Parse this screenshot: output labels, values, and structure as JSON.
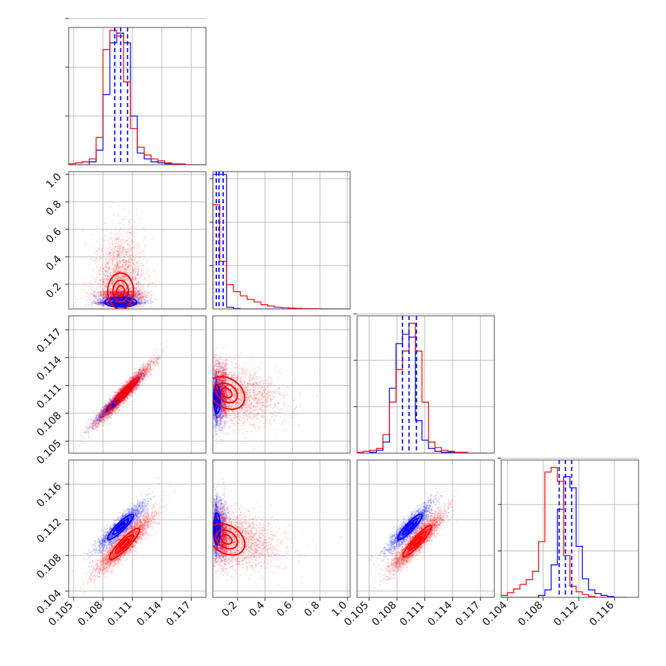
{
  "chart_data": {
    "type": "corner",
    "grid": true,
    "series": [
      {
        "color": "#0000ff"
      },
      {
        "color": "#ff0000"
      }
    ],
    "diag_ticks": 3,
    "params": [
      {
        "range": [
          0.1045,
          0.1185
        ],
        "ticks": [
          "0.105",
          "0.108",
          "0.111",
          "0.114",
          "0.117"
        ],
        "tickvals": [
          0.105,
          0.108,
          0.111,
          0.114,
          0.117
        ],
        "hist": {
          "edges": [
            0.1045,
            0.1052,
            0.1059,
            0.1066,
            0.1073,
            0.108,
            0.1087,
            0.1094,
            0.1101,
            0.1108,
            0.1115,
            0.1122,
            0.1129,
            0.1136,
            0.1143,
            0.115,
            0.1157,
            0.1164,
            0.1171,
            0.1178,
            0.1185
          ],
          "blue": [
            0.0,
            0.0,
            0.0,
            0.03,
            0.15,
            0.72,
            1.25,
            1.35,
            1.25,
            0.5,
            0.12,
            0.06,
            0.03,
            0.02,
            0.01,
            0.01,
            0.0,
            0.0,
            0.0,
            0.0
          ],
          "red": [
            0.01,
            0.02,
            0.03,
            0.06,
            0.28,
            1.18,
            1.38,
            1.32,
            0.85,
            0.37,
            0.18,
            0.1,
            0.06,
            0.04,
            0.02,
            0.01,
            0.01,
            0.0,
            0.0,
            0.0
          ],
          "ymax": 1.38,
          "quantiles": [
            0.1092,
            0.1098,
            0.1105
          ]
        }
      },
      {
        "range": [
          0.02,
          1.02
        ],
        "ticks": [
          "0.2",
          "0.4",
          "0.6",
          "0.8",
          "1.0"
        ],
        "tickvals": [
          0.2,
          0.4,
          0.6,
          0.8,
          1.0
        ],
        "hist": {
          "edges": [
            0.02,
            0.07,
            0.12,
            0.17,
            0.22,
            0.27,
            0.32,
            0.37,
            0.42,
            0.47,
            0.52,
            0.57,
            0.62,
            0.67,
            0.72,
            0.77,
            0.82,
            0.87,
            0.92,
            0.97,
            1.02
          ],
          "blue": [
            1.55,
            1.55,
            0.02,
            0.005,
            0,
            0,
            0,
            0,
            0,
            0,
            0,
            0,
            0,
            0,
            0,
            0,
            0,
            0,
            0,
            0
          ],
          "red": [
            1.2,
            0.55,
            0.28,
            0.2,
            0.15,
            0.11,
            0.08,
            0.05,
            0.035,
            0.02,
            0.015,
            0.01,
            0.006,
            0.004,
            0.003,
            0.002,
            0.001,
            0,
            0,
            0
          ],
          "ymax": 1.55,
          "quantiles": [
            0.045,
            0.065,
            0.095
          ]
        }
      },
      {
        "range": [
          0.1037,
          0.1185
        ],
        "ticks": [
          "0.105",
          "0.108",
          "0.111",
          "0.114",
          "0.117"
        ],
        "tickvals": [
          0.105,
          0.108,
          0.111,
          0.114,
          0.117
        ],
        "hist": {
          "edges": [
            0.1037,
            0.1044,
            0.1051,
            0.1058,
            0.1065,
            0.1072,
            0.1079,
            0.1086,
            0.1093,
            0.11,
            0.1107,
            0.1114,
            0.1121,
            0.1128,
            0.1135,
            0.1142,
            0.1149,
            0.1156,
            0.1163,
            0.117,
            0.1177
          ],
          "blue": [
            0.0,
            0.0,
            0.01,
            0.03,
            0.12,
            0.7,
            1.18,
            1.28,
            1.25,
            0.35,
            0.14,
            0.05,
            0.02,
            0.01,
            0.01,
            0.0,
            0.0,
            0.0,
            0.0,
            0.0
          ],
          "red": [
            0.01,
            0.02,
            0.03,
            0.05,
            0.2,
            0.55,
            0.9,
            1.1,
            1.4,
            1.1,
            0.55,
            0.12,
            0.06,
            0.03,
            0.02,
            0.01,
            0.01,
            0.0,
            0.0,
            0.0
          ],
          "ymax": 1.45,
          "quantiles": [
            0.1086,
            0.1093,
            0.1101
          ]
        }
      },
      {
        "range": [
          0.1033,
          0.1187
        ],
        "ticks": [
          "0.104",
          "0.108",
          "0.112",
          "0.116"
        ],
        "tickvals": [
          0.104,
          0.108,
          0.112,
          0.116
        ],
        "hist": {
          "edges": [
            0.1033,
            0.104,
            0.1047,
            0.1054,
            0.1061,
            0.1068,
            0.1075,
            0.1082,
            0.1089,
            0.1096,
            0.1103,
            0.111,
            0.1117,
            0.1124,
            0.1131,
            0.1138,
            0.1145,
            0.1152,
            0.1159,
            0.1166,
            0.1173
          ],
          "blue": [
            0.0,
            0.0,
            0.0,
            0.0,
            0.0,
            0.0,
            0.02,
            0.08,
            0.35,
            0.95,
            1.3,
            1.18,
            0.55,
            0.2,
            0.08,
            0.04,
            0.02,
            0.01,
            0.0,
            0.0
          ],
          "red": [
            0.02,
            0.05,
            0.09,
            0.14,
            0.19,
            0.28,
            0.6,
            1.35,
            1.4,
            1.25,
            0.45,
            0.12,
            0.06,
            0.03,
            0.01,
            0.0,
            0.0,
            0.0,
            0.0,
            0.0
          ],
          "ymax": 1.45,
          "quantiles": [
            0.1098,
            0.1105,
            0.1112
          ]
        }
      }
    ],
    "scatter_panels": [
      {
        "row": 1,
        "col": 0,
        "blue": {
          "mean": [
            0.1098,
            0.07
          ],
          "sd": [
            0.0011,
            0.025
          ],
          "rho": 0.0,
          "contours": [
            1.2,
            2.0,
            2.7
          ]
        },
        "red": {
          "mean": [
            0.1098,
            0.15
          ],
          "sd": [
            0.0012,
            0.12
          ],
          "rho": 0.0,
          "contours": [
            0.6,
            1.2,
            2.0
          ]
        }
      },
      {
        "row": 2,
        "col": 0,
        "blue": {
          "mean": [
            0.1097,
            0.1097
          ],
          "sd": [
            0.0012,
            0.0013
          ],
          "rho": 0.97,
          "contours": [
            0.6,
            1.2,
            2.0
          ]
        },
        "red": {
          "mean": [
            0.1101,
            0.1101
          ],
          "sd": [
            0.0014,
            0.0016
          ],
          "rho": 0.96,
          "contours": [
            0.6,
            1.2,
            2.0
          ]
        }
      },
      {
        "row": 2,
        "col": 1,
        "blue": {
          "mean": [
            0.05,
            0.1095
          ],
          "sd": [
            0.022,
            0.0014
          ],
          "rho": 0.0,
          "contours": [
            0.6,
            1.2,
            2.0
          ]
        },
        "red": {
          "mean": [
            0.12,
            0.1102
          ],
          "sd": [
            0.12,
            0.0016
          ],
          "rho": -0.3,
          "contours": [
            0.6,
            1.2,
            2.0
          ]
        }
      },
      {
        "row": 3,
        "col": 0,
        "blue": {
          "mean": [
            0.1098,
            0.1112
          ],
          "sd": [
            0.0012,
            0.0013
          ],
          "rho": 0.9,
          "contours": [
            0.6,
            1.2,
            2.0
          ]
        },
        "red": {
          "mean": [
            0.1102,
            0.1093
          ],
          "sd": [
            0.0014,
            0.0016
          ],
          "rho": 0.9,
          "contours": [
            0.6,
            1.2,
            2.0
          ]
        }
      },
      {
        "row": 3,
        "col": 1,
        "blue": {
          "mean": [
            0.05,
            0.111
          ],
          "sd": [
            0.022,
            0.0016
          ],
          "rho": 0.0,
          "contours": [
            0.6,
            1.2,
            2.0
          ]
        },
        "red": {
          "mean": [
            0.12,
            0.1098
          ],
          "sd": [
            0.12,
            0.0016
          ],
          "rho": -0.3,
          "contours": [
            0.6,
            1.2,
            2.0
          ]
        }
      },
      {
        "row": 3,
        "col": 2,
        "blue": {
          "mean": [
            0.1094,
            0.1112
          ],
          "sd": [
            0.0012,
            0.0013
          ],
          "rho": 0.9,
          "contours": [
            0.6,
            1.2,
            2.0
          ]
        },
        "red": {
          "mean": [
            0.1102,
            0.1096
          ],
          "sd": [
            0.0014,
            0.0016
          ],
          "rho": 0.92,
          "contours": [
            0.6,
            1.2,
            2.0
          ]
        }
      }
    ]
  }
}
